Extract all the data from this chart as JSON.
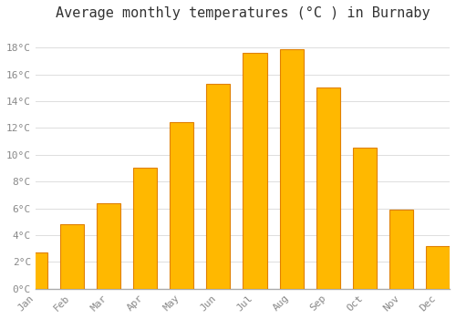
{
  "title": "Average monthly temperatures (°C ) in Burnaby",
  "months": [
    "Jan",
    "Feb",
    "Mar",
    "Apr",
    "May",
    "Jun",
    "Jul",
    "Aug",
    "Sep",
    "Oct",
    "Nov",
    "Dec"
  ],
  "values": [
    2.7,
    4.8,
    6.4,
    9.0,
    12.4,
    15.3,
    17.6,
    17.9,
    15.0,
    10.5,
    5.9,
    3.2
  ],
  "bar_color_center": "#FFB800",
  "bar_color_edge": "#E08000",
  "background_color": "#FFFFFF",
  "plot_background": "#FFFFFF",
  "grid_color": "#DDDDDD",
  "ylim": [
    0,
    19.5
  ],
  "yticks": [
    0,
    2,
    4,
    6,
    8,
    10,
    12,
    14,
    16,
    18
  ],
  "ytick_labels": [
    "0°C",
    "2°C",
    "4°C",
    "6°C",
    "8°C",
    "10°C",
    "12°C",
    "14°C",
    "16°C",
    "18°C"
  ],
  "title_fontsize": 11,
  "tick_fontsize": 8,
  "title_color": "#333333",
  "tick_color": "#888888",
  "font_family": "monospace",
  "bar_width": 0.65
}
